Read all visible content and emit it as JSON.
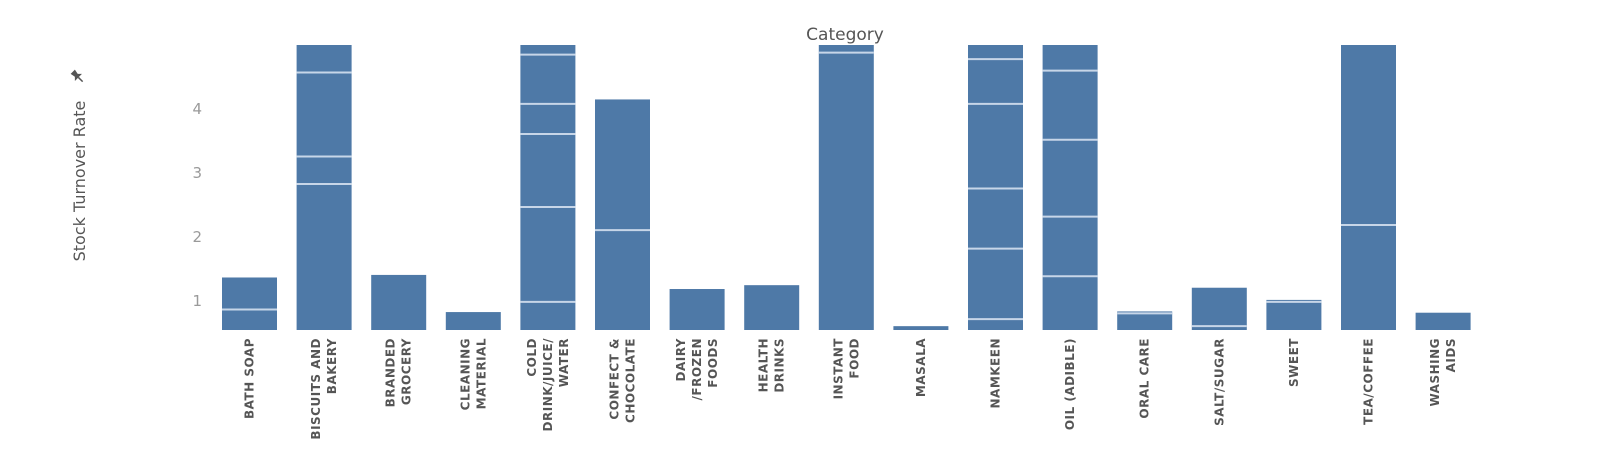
{
  "chart_data": {
    "type": "bar",
    "title": "Category",
    "xlabel": "",
    "ylabel": "Stock Turnover Rate",
    "ylabel_icon": "pin-icon",
    "bar_color": "#4e79a7",
    "segment_line_color": "#c7d6e8",
    "ylim": [
      0.55,
      5.0
    ],
    "yticks": [
      1,
      2,
      3,
      4
    ],
    "grid": false,
    "legend": "none",
    "categories": [
      "BATH SOAP",
      "BISCUITS AND BAKERY",
      "BRANDED GROCERY",
      "CLEANING MATERIAL",
      "COLD DRINK/JUICE/ WATER",
      "CONFECT & CHOCOLATE",
      "DAIRY /FROZEN FOODS",
      "HEALTH DRINKS",
      "INSTANT FOOD",
      "MASALA",
      "NAMKEEN",
      "OIL (ADIBLE)",
      "ORAL CARE",
      "SALT/SUGAR",
      "SWEET",
      "TEA/COFFEE",
      "WASHING AIDS"
    ],
    "category_lines": [
      [
        "BATH SOAP"
      ],
      [
        "BISCUITS AND",
        "BAKERY"
      ],
      [
        "BRANDED",
        "GROCERY"
      ],
      [
        "CLEANING",
        "MATERIAL"
      ],
      [
        "COLD",
        "DRINK/JUICE/",
        "WATER"
      ],
      [
        "CONFECT &",
        "CHOCOLATE"
      ],
      [
        "DAIRY",
        "/FROZEN",
        "FOODS"
      ],
      [
        "HEALTH",
        "DRINKS"
      ],
      [
        "INSTANT",
        "FOOD"
      ],
      [
        "MASALA"
      ],
      [
        "NAMKEEN"
      ],
      [
        "OIL (ADIBLE)"
      ],
      [
        "ORAL CARE"
      ],
      [
        "SALT/SUGAR"
      ],
      [
        "SWEET"
      ],
      [
        "TEA/COFFEE"
      ],
      [
        "WASHING",
        "AIDS"
      ]
    ],
    "values": [
      1.37,
      5.0,
      1.41,
      0.83,
      5.0,
      4.15,
      1.19,
      1.25,
      5.0,
      0.61,
      5.0,
      5.0,
      0.84,
      1.21,
      1.02,
      5.0,
      0.82
    ],
    "segment_boundaries": [
      [
        0.87
      ],
      [
        2.83,
        3.26,
        4.57
      ],
      [],
      [],
      [
        0.99,
        2.47,
        3.61,
        4.08,
        4.85
      ],
      [
        2.11
      ],
      [],
      [],
      [
        4.88
      ],
      [],
      [
        0.72,
        1.82,
        2.76,
        4.08,
        4.78
      ],
      [
        1.39,
        2.32,
        3.52,
        4.6
      ],
      [
        0.81
      ],
      [
        0.61
      ],
      [
        0.99
      ],
      [
        2.19
      ],
      []
    ]
  }
}
